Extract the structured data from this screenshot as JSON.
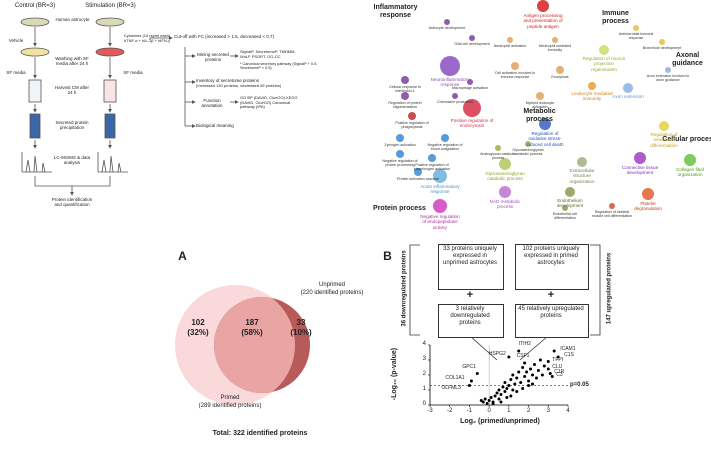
{
  "workflow": {
    "control": "Control (BR=3)",
    "stimulation": "Stimulation (BR=3)",
    "human_astrocyte": "Human astrocyte",
    "vehicle": "Vehicle",
    "cytokines": "Cytokines (10 ng/ml each) hTNF-α + hIL-1β + hIFN-γ",
    "washing": "Washing with SF media after 24 h",
    "sf_media_left": "SF media",
    "sf_media_right": "SF media",
    "harvest": "Harvest CM after 24 h",
    "precipitation": "Secreted protein precipitation",
    "lcms": "LC-MS/MS & data analysis",
    "identification": "Protein identification and quantification",
    "cutoff": "Cut-off with FC (increased > 1.5, decreased < 0.7)",
    "mining": "Mining secreted proteins",
    "tools": "SignalP, SecretomeP, TMHMM, WoLF PSORT, GO-CC",
    "canonical": "* Canonical secretory pathway (SignalP + 0.5, SecretomeP > 0.5)",
    "inventory": "Inventory of secretome proteins",
    "inventory_detail": "(Increased 130 proteins, decreased 49 proteins)",
    "function": "Function annotation",
    "annotation_tools": "GO BP (DAVID, ClueGO) KEGG (DAVID, ClueGO) Canonical pathway (IPA)",
    "meaning": "Biological meaning"
  },
  "network": {
    "clusters": [
      "Inflammatory response",
      "Immune process",
      "Axonal guidance",
      "Metabolic process",
      "Cellular process",
      "Protein process"
    ],
    "nodes": [
      "Antigen processing and presentation of peptide antigen",
      "Astrocyte development",
      "Glial cell development",
      "Neuroinflammatory response",
      "Cellular response to interleukin-1",
      "Regulation of protein oligomerization",
      "Macrophage activation",
      "Chemokine production",
      "Positive regulation of endocytosis",
      "Positive regulation of phagocytosis",
      "Neutrophil activation",
      "Neutrophil mediated immunity",
      "Cell activation involved in immune response",
      "Exocytosis",
      "Myeloid leukocyte activation",
      "Leukocyte mediated immunity",
      "Regulation of neuron projection regeneration",
      "Antimicrobial humoral response",
      "Bronchiole development",
      "Axon extension",
      "Axon extension involved in axon guidance",
      "Regulation of osteoblast differentiation",
      "Regulation of oxidative stress-induced cell death",
      "Glycosaminoglycan metabolic process",
      "Aminoglycan catabolic process",
      "Glycosaminoglycan catabolic process",
      "NAD metabolic process",
      "Extracellular structure organization",
      "Connective tissue development",
      "Collagen fibril organization",
      "Endothelium development",
      "Platelet degranulation",
      "Negative regulation of endopeptidase activity",
      "Acute inflammatory response",
      "Zymogen activation",
      "Negative regulation of blood coagulation",
      "Negative regulation of protein processing",
      "Positive regulation of plasminogen activation",
      "Protein activation cascade",
      "Endothelial cell differentiation",
      "Regulation of skeletal muscle cell differentiation"
    ]
  },
  "venn": {
    "panel": "A",
    "primed_only": "102",
    "primed_only_pct": "(32%)",
    "shared": "187",
    "shared_pct": "(58%)",
    "unprimed_only": "33",
    "unprimed_only_pct": "(10%)",
    "unprimed": "Unprimed",
    "unprimed_count": "(220 identified proteins)",
    "primed": "Primed",
    "primed_count": "(289 identified proteins)",
    "total": "Total: 322 identified proteins"
  },
  "volcano": {
    "panel": "B",
    "unprimed_unique": "33 proteins uniquely expressed in unprimed astrocytes",
    "plus_left": "+",
    "down": "3 relatively downregulated proteins",
    "primed_unique": "102 proteins uniquely expressed in primed astrocytes",
    "plus_right": "+",
    "up": "45 relatively upregulated proteins",
    "down_total": "36 downregulated proteins",
    "up_total": "147 upregulated proteins",
    "x_label": "Log₂ (primed/unprimed)",
    "y_label": "-Log₁₀ (p-value)",
    "threshold_label": "p=0.05",
    "threshold": 1.3,
    "xlim": [
      -3,
      4
    ],
    "ylim": [
      0,
      4
    ],
    "xticks": [
      -3,
      -2,
      -1,
      0,
      1,
      2,
      3,
      4
    ],
    "yticks": [
      0,
      1,
      2,
      3,
      4
    ],
    "genes": [
      "ICAM1",
      "C1S",
      "TFPI",
      "CLU",
      "C1R",
      "C3",
      "ITIH2",
      "HSPG2",
      "CSF1",
      "GPC1",
      "COL1A1",
      "OLFML3"
    ],
    "x": [
      -0.6,
      -0.9,
      -1.0,
      -0.3,
      -0.2,
      -0.1,
      0,
      0.1,
      0.2,
      0.3,
      0.4,
      0.5,
      0.5,
      0.6,
      0.7,
      0.8,
      0.8,
      0.9,
      1.0,
      1.0,
      1.1,
      1.2,
      1.2,
      1.3,
      1.4,
      1.5,
      1.5,
      1.6,
      1.7,
      1.8,
      1.8,
      1.9,
      2.0,
      2.1,
      2.2,
      2.3,
      2.4,
      2.5,
      2.6,
      2.7,
      2.8,
      3.0,
      3.0,
      3.1,
      3.2,
      3.3,
      3.5,
      0.2,
      -0.4,
      0.6,
      0.9,
      1.1,
      1.4,
      1.7,
      2.0,
      2.2
    ],
    "y": [
      2.1,
      1.6,
      1.3,
      0.2,
      0.4,
      0.1,
      0.3,
      0.5,
      0.2,
      0.6,
      0.8,
      0.4,
      1.0,
      0.7,
      1.2,
      0.9,
      1.5,
      1.1,
      1.3,
      3.2,
      1.7,
      1.0,
      2.0,
      1.4,
      1.8,
      3.6,
      2.2,
      1.5,
      2.5,
      2.8,
      1.9,
      2.2,
      1.6,
      2.4,
      2.0,
      2.7,
      1.8,
      2.3,
      3.0,
      2.0,
      2.6,
      2.9,
      2.4,
      2.1,
      1.9,
      3.6,
      3.2,
      0.1,
      0.3,
      0.2,
      0.5,
      0.6,
      0.9,
      1.1,
      1.3,
      1.4
    ]
  }
}
